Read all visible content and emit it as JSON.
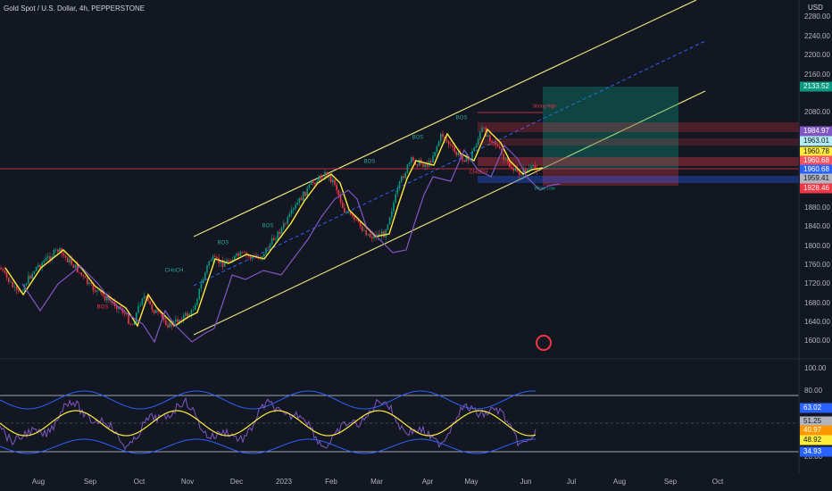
{
  "header": {
    "title": "Gold Spot / U.S. Dollar, 4h, PEPPERSTONE",
    "currency": "USD"
  },
  "price_axis": [
    "2280.00",
    "2240.00",
    "2200.00",
    "2160.00",
    "2080.00",
    "1880.00",
    "1840.00",
    "1800.00",
    "1760.00",
    "1720.00",
    "1680.00",
    "1640.00",
    "1600.00"
  ],
  "price_tags": [
    {
      "label": "2133.52",
      "color": "#089981"
    },
    {
      "label": "1984.97",
      "color": "#7e57c2"
    },
    {
      "label": "1963.01",
      "color": "#b2ebf2"
    },
    {
      "label": "1960.78",
      "color": "#ffeb3b"
    },
    {
      "label": "1960.68",
      "color": "#f7525f"
    },
    {
      "label": "1960.68",
      "color": "#2962ff"
    },
    {
      "label": "1959.41",
      "color": "#b2b5be"
    },
    {
      "label": "1928.46",
      "color": "#f23645"
    }
  ],
  "rsi_axis": [
    "100.00",
    "80.00",
    "20.00"
  ],
  "rsi_tags": [
    {
      "label": "63.02",
      "color": "#2962ff"
    },
    {
      "label": "51.25",
      "color": "#b2b5be"
    },
    {
      "label": "40.97",
      "color": "#ff9800"
    },
    {
      "label": "48.92",
      "color": "#ffeb3b"
    },
    {
      "label": "34.93",
      "color": "#2962ff"
    }
  ],
  "time_axis": [
    "Aug",
    "Sep",
    "Oct",
    "Nov",
    "Dec",
    "2023",
    "Feb",
    "Mar",
    "Apr",
    "May",
    "Jun",
    "Jul",
    "Aug",
    "Sep",
    "Oct"
  ],
  "annotations": [
    {
      "text": "CHoCH",
      "color": "#26a69a"
    },
    {
      "text": "BOS",
      "color": "#26a69a"
    },
    {
      "text": "BOS",
      "color": "#26a69a"
    },
    {
      "text": "BOS",
      "color": "#26a69a"
    },
    {
      "text": "BOS",
      "color": "#26a69a"
    },
    {
      "text": "BOS",
      "color": "#26a69a"
    },
    {
      "text": "BOS",
      "color": "#f23645"
    },
    {
      "text": "CHoCH",
      "color": "#f23645"
    },
    {
      "text": "Strong High",
      "color": "#f23645"
    },
    {
      "text": "Weak Low",
      "color": "#26a69a"
    }
  ]
}
